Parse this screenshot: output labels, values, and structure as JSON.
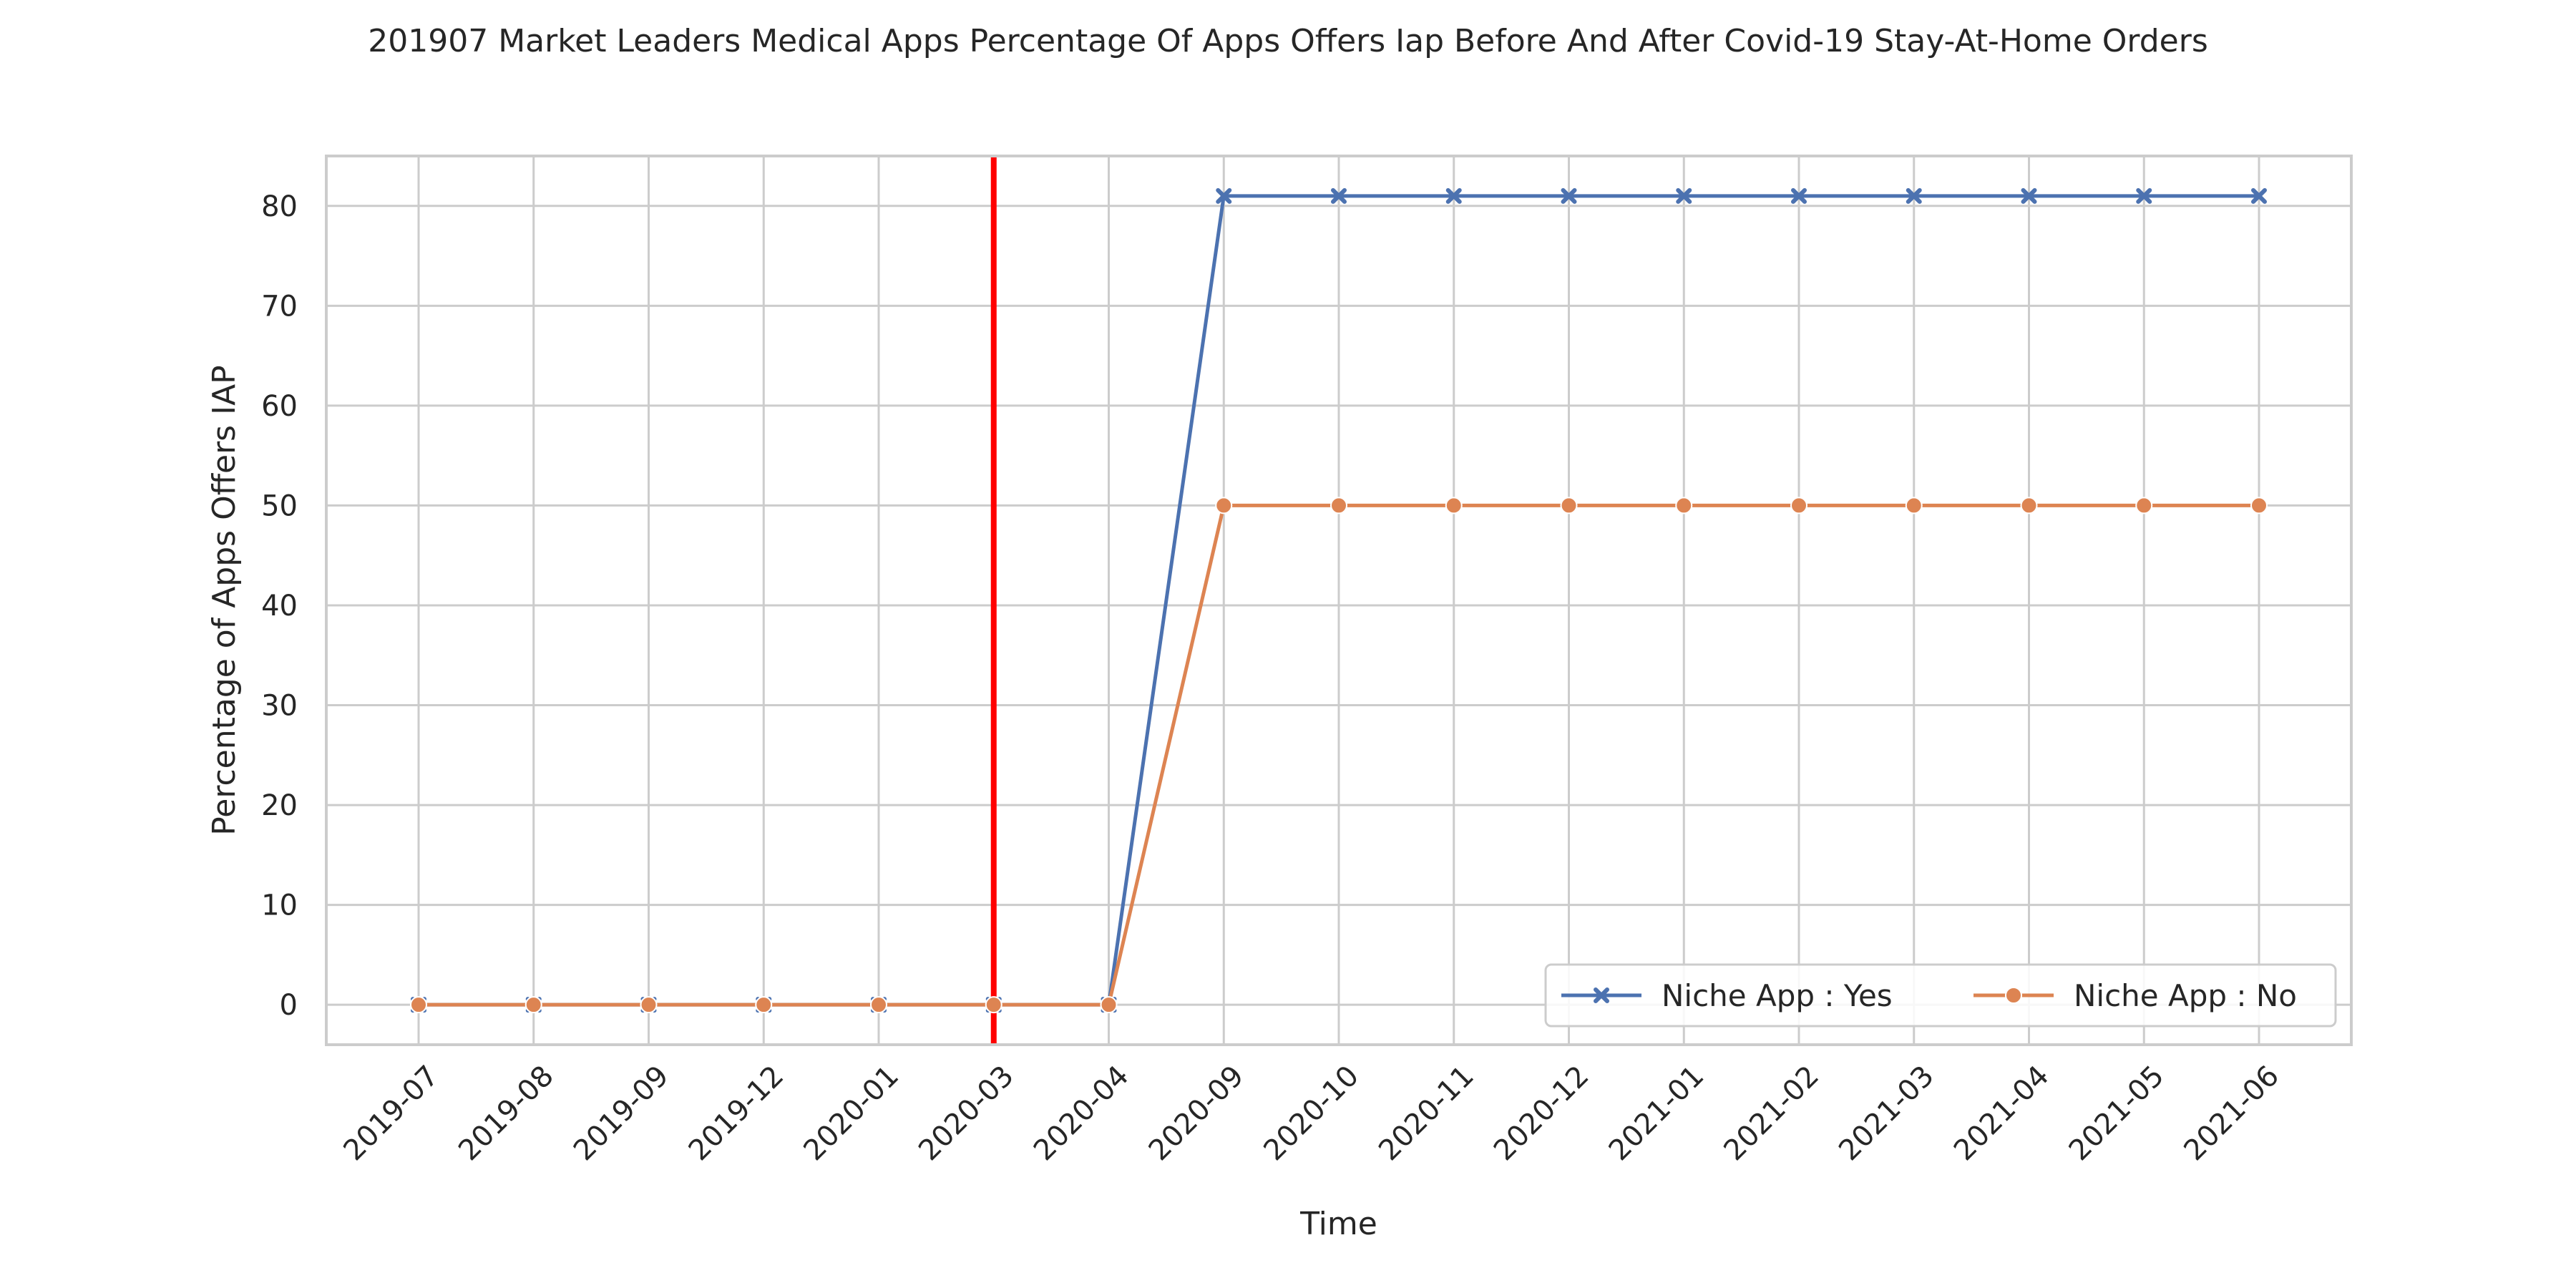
{
  "chart_data": {
    "type": "line",
    "title": "201907 Market Leaders Medical Apps Percentage Of Apps Offers Iap Before And After Covid-19 Stay-At-Home Orders",
    "xlabel": "Time",
    "ylabel": "Percentage of Apps Offers IAP",
    "categories": [
      "2019-07",
      "2019-08",
      "2019-09",
      "2019-12",
      "2020-01",
      "2020-03",
      "2020-04",
      "2020-09",
      "2020-10",
      "2020-11",
      "2020-12",
      "2021-01",
      "2021-02",
      "2021-03",
      "2021-04",
      "2021-05",
      "2021-06"
    ],
    "ylim": [
      -4,
      85
    ],
    "yticks": [
      0,
      10,
      20,
      30,
      40,
      50,
      60,
      70,
      80
    ],
    "grid": true,
    "legend_position": "bottom-right",
    "event_line": {
      "category": "2020-03",
      "color": "#ff0000"
    },
    "series": [
      {
        "name": "Niche App : Yes",
        "marker": "x",
        "color": "#4c72b0",
        "values": [
          0,
          0,
          0,
          0,
          0,
          0,
          0,
          81,
          81,
          81,
          81,
          81,
          81,
          81,
          81,
          81,
          81
        ]
      },
      {
        "name": "Niche App : No",
        "marker": "circle",
        "color": "#dd8452",
        "values": [
          0,
          0,
          0,
          0,
          0,
          0,
          0,
          50,
          50,
          50,
          50,
          50,
          50,
          50,
          50,
          50,
          50
        ]
      }
    ]
  }
}
